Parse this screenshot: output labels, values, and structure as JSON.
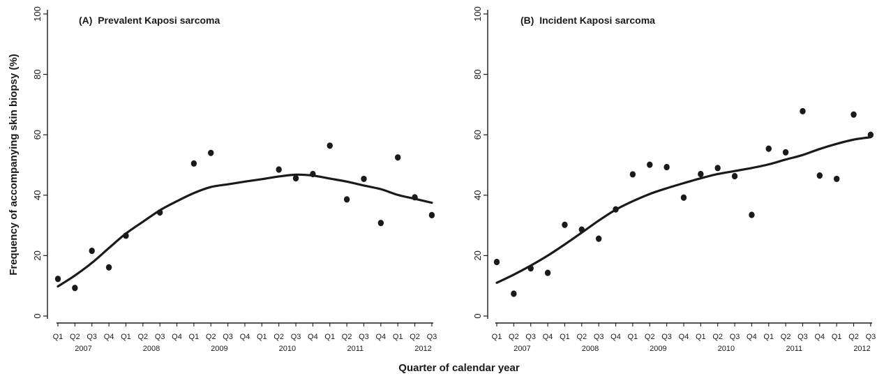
{
  "figure": {
    "ylabel": "Frequency of accompanying skin biopsy (%)",
    "xlabel": "Quarter of calendar year"
  },
  "chart_data": [
    {
      "type": "scatter",
      "title": "(A)  Prevalent Kaposi sarcoma",
      "ylabel": "Frequency of accompanying skin biopsy (%)",
      "xlabel": "Quarter of calendar year",
      "ylim": [
        0,
        100
      ],
      "yticks": [
        0,
        20,
        40,
        60,
        80,
        100
      ],
      "categories": [
        "Q1",
        "Q2",
        "Q3",
        "Q4",
        "Q1",
        "Q2",
        "Q3",
        "Q4",
        "Q1",
        "Q2",
        "Q3",
        "Q4",
        "Q1",
        "Q2",
        "Q3",
        "Q4",
        "Q1",
        "Q2",
        "Q3",
        "Q4",
        "Q1",
        "Q2",
        "Q3"
      ],
      "years": [
        {
          "label": "2007",
          "quarters": [
            0,
            3
          ]
        },
        {
          "label": "2008",
          "quarters": [
            4,
            7
          ]
        },
        {
          "label": "2009",
          "quarters": [
            8,
            11
          ]
        },
        {
          "label": "2010",
          "quarters": [
            12,
            15
          ]
        },
        {
          "label": "2011",
          "quarters": [
            16,
            19
          ]
        },
        {
          "label": "2012",
          "quarters": [
            20,
            22
          ]
        }
      ],
      "points": [
        {
          "q": 0,
          "y": 12.3
        },
        {
          "q": 1,
          "y": 9.3
        },
        {
          "q": 2,
          "y": 21.6
        },
        {
          "q": 3,
          "y": 16.1
        },
        {
          "q": 4,
          "y": 26.6
        },
        {
          "q": 6,
          "y": 34.3
        },
        {
          "q": 8,
          "y": 50.5
        },
        {
          "q": 9,
          "y": 54.0
        },
        {
          "q": 13,
          "y": 48.5
        },
        {
          "q": 14,
          "y": 45.6
        },
        {
          "q": 15,
          "y": 47.0
        },
        {
          "q": 16,
          "y": 56.4
        },
        {
          "q": 17,
          "y": 38.6
        },
        {
          "q": 18,
          "y": 45.4
        },
        {
          "q": 19,
          "y": 30.8
        },
        {
          "q": 20,
          "y": 52.5
        },
        {
          "q": 21,
          "y": 39.3
        },
        {
          "q": 22,
          "y": 33.4
        }
      ],
      "fit": [
        {
          "q": 0,
          "y": 9.8
        },
        {
          "q": 1,
          "y": 13.4
        },
        {
          "q": 2,
          "y": 17.6
        },
        {
          "q": 3,
          "y": 22.5
        },
        {
          "q": 4,
          "y": 27.3
        },
        {
          "q": 5,
          "y": 31.2
        },
        {
          "q": 6,
          "y": 35.0
        },
        {
          "q": 7,
          "y": 38.0
        },
        {
          "q": 8,
          "y": 40.7
        },
        {
          "q": 9,
          "y": 42.7
        },
        {
          "q": 10,
          "y": 43.6
        },
        {
          "q": 11,
          "y": 44.5
        },
        {
          "q": 12,
          "y": 45.3
        },
        {
          "q": 13,
          "y": 46.2
        },
        {
          "q": 14,
          "y": 46.8
        },
        {
          "q": 15,
          "y": 46.5
        },
        {
          "q": 16,
          "y": 45.5
        },
        {
          "q": 17,
          "y": 44.5
        },
        {
          "q": 18,
          "y": 43.2
        },
        {
          "q": 19,
          "y": 42.0
        },
        {
          "q": 20,
          "y": 40.1
        },
        {
          "q": 21,
          "y": 38.8
        },
        {
          "q": 22,
          "y": 37.5
        }
      ]
    },
    {
      "type": "scatter",
      "title": "(B)  Incident Kaposi sarcoma",
      "ylabel": "Frequency of accompanying skin biopsy (%)",
      "xlabel": "Quarter of calendar year",
      "ylim": [
        0,
        100
      ],
      "yticks": [
        0,
        20,
        40,
        60,
        80,
        100
      ],
      "categories": [
        "Q1",
        "Q2",
        "Q3",
        "Q4",
        "Q1",
        "Q2",
        "Q3",
        "Q4",
        "Q1",
        "Q2",
        "Q3",
        "Q4",
        "Q1",
        "Q2",
        "Q3",
        "Q4",
        "Q1",
        "Q2",
        "Q3",
        "Q4",
        "Q1",
        "Q2",
        "Q3"
      ],
      "years": [
        {
          "label": "2007",
          "quarters": [
            0,
            3
          ]
        },
        {
          "label": "2008",
          "quarters": [
            4,
            7
          ]
        },
        {
          "label": "2009",
          "quarters": [
            8,
            11
          ]
        },
        {
          "label": "2010",
          "quarters": [
            12,
            15
          ]
        },
        {
          "label": "2011",
          "quarters": [
            16,
            19
          ]
        },
        {
          "label": "2012",
          "quarters": [
            20,
            22
          ]
        }
      ],
      "points": [
        {
          "q": 0,
          "y": 17.9
        },
        {
          "q": 1,
          "y": 7.4
        },
        {
          "q": 2,
          "y": 15.8
        },
        {
          "q": 3,
          "y": 14.3
        },
        {
          "q": 4,
          "y": 30.2
        },
        {
          "q": 5,
          "y": 28.6
        },
        {
          "q": 6,
          "y": 25.6
        },
        {
          "q": 7,
          "y": 35.3
        },
        {
          "q": 8,
          "y": 46.9
        },
        {
          "q": 9,
          "y": 50.1
        },
        {
          "q": 10,
          "y": 49.3
        },
        {
          "q": 11,
          "y": 39.2
        },
        {
          "q": 12,
          "y": 47.0
        },
        {
          "q": 13,
          "y": 49.0
        },
        {
          "q": 14,
          "y": 46.3
        },
        {
          "q": 15,
          "y": 33.5
        },
        {
          "q": 16,
          "y": 55.4
        },
        {
          "q": 17,
          "y": 54.2
        },
        {
          "q": 18,
          "y": 67.8
        },
        {
          "q": 19,
          "y": 46.5
        },
        {
          "q": 20,
          "y": 45.4
        },
        {
          "q": 21,
          "y": 66.7
        },
        {
          "q": 22,
          "y": 60.0
        }
      ],
      "fit": [
        {
          "q": 0,
          "y": 11.0
        },
        {
          "q": 1,
          "y": 13.7
        },
        {
          "q": 2,
          "y": 16.7
        },
        {
          "q": 3,
          "y": 20.0
        },
        {
          "q": 4,
          "y": 23.7
        },
        {
          "q": 5,
          "y": 27.6
        },
        {
          "q": 6,
          "y": 31.6
        },
        {
          "q": 7,
          "y": 35.2
        },
        {
          "q": 8,
          "y": 38.0
        },
        {
          "q": 9,
          "y": 40.4
        },
        {
          "q": 10,
          "y": 42.3
        },
        {
          "q": 11,
          "y": 44.0
        },
        {
          "q": 12,
          "y": 45.6
        },
        {
          "q": 13,
          "y": 47.0
        },
        {
          "q": 14,
          "y": 48.0
        },
        {
          "q": 15,
          "y": 49.0
        },
        {
          "q": 16,
          "y": 50.2
        },
        {
          "q": 17,
          "y": 51.8
        },
        {
          "q": 18,
          "y": 53.3
        },
        {
          "q": 19,
          "y": 55.3
        },
        {
          "q": 20,
          "y": 57.0
        },
        {
          "q": 21,
          "y": 58.4
        },
        {
          "q": 22,
          "y": 59.2
        }
      ]
    }
  ]
}
